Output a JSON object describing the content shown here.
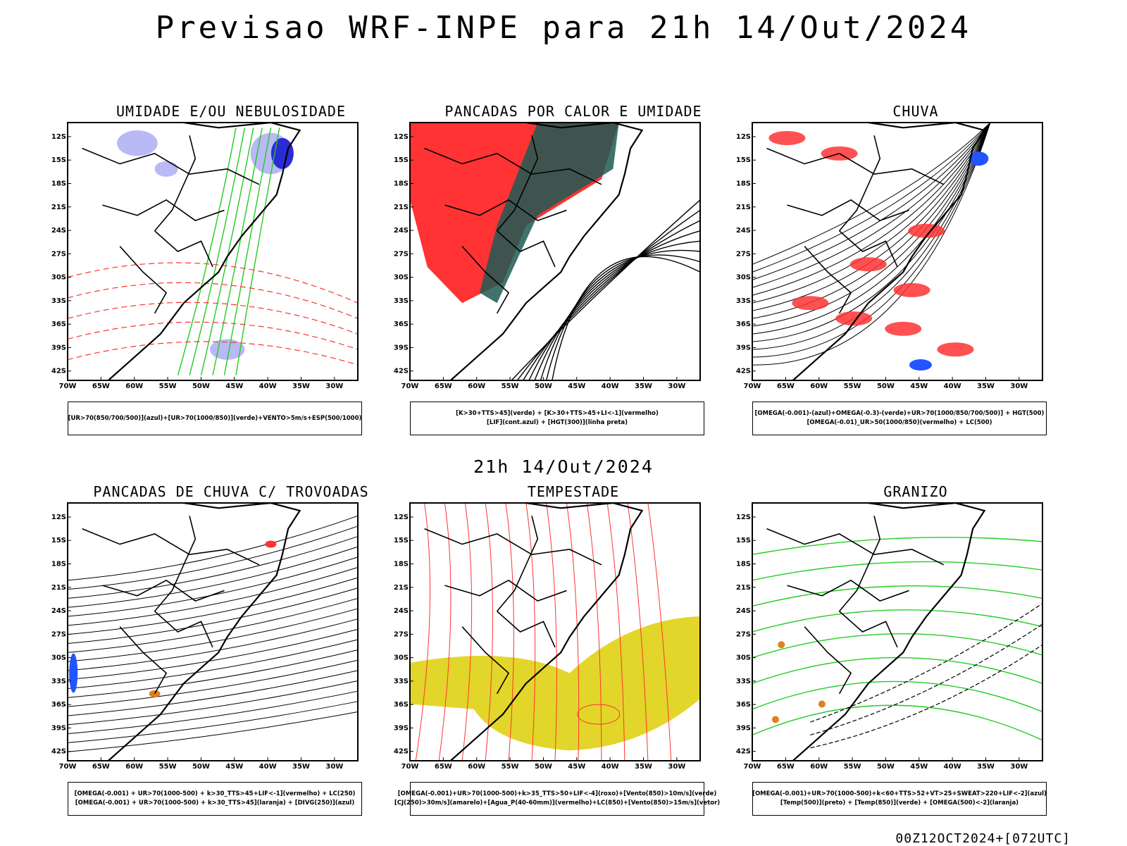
{
  "header": {
    "title": "Previsao WRF-INPE  para 21h 14/Out/2024",
    "subtitle": "21h 14/Out/2024"
  },
  "footer": {
    "run_info": "00Z12OCT2024+[072UTC]"
  },
  "axes": {
    "lat_labels": [
      "12S",
      "15S",
      "18S",
      "21S",
      "24S",
      "27S",
      "30S",
      "33S",
      "36S",
      "39S",
      "42S"
    ],
    "lon_labels": [
      "70W",
      "65W",
      "60W",
      "55W",
      "50W",
      "45W",
      "40W",
      "35W",
      "30W"
    ]
  },
  "panels": [
    {
      "title": "UMIDADE E/OU NEBULOSIDADE",
      "legend": [
        "[UR>70(850/700/500)](azul)+[UR>70(1000/850)](verde)+VENTO>5m/s+ESP(500/1000)"
      ],
      "overlay": "humidity",
      "colors": {
        "primary": "#2b2bd6",
        "secondary": "#22cc22",
        "lines": "#ff3333"
      }
    },
    {
      "title": "PANCADAS POR CALOR E UMIDADE",
      "legend": [
        "[K>30+TTS>45](verde) + [K>30+TTS>45+LI<-1](vermelho)",
        "[LIF](cont.azul) + [HGT(300)](linha preta)"
      ],
      "overlay": "heat",
      "colors": {
        "primary": "#ff3333",
        "secondary": "#1e5a55",
        "lines": "#2a4bd6"
      }
    },
    {
      "title": "CHUVA",
      "legend": [
        "[OMEGA(-0.001)-(azul)+OMEGA(-0.3)-(verde)+UR>70(1000/850/700/500)] + HGT(500)",
        "[OMEGA(-0.01)_UR>50(1000/850)(vermelho) + LC(500)"
      ],
      "overlay": "rain",
      "colors": {
        "primary": "#ff3333",
        "secondary": "#2255ff",
        "lines": "#000000"
      }
    },
    {
      "title": "PANCADAS DE CHUVA C/ TROVOADAS",
      "legend": [
        "[OMEGA(-0.001) + UR>70(1000-500) + k>30_TTS>45+LIF<-1](vermelho) + LC(250)",
        "[OMEGA(-0.001) + UR>70(1000-500) + k>30_TTS>45](laranja) + [DIVG(250)](azul)"
      ],
      "overlay": "storms",
      "colors": {
        "primary": "#2255ff",
        "secondary": "#ff3333",
        "lines": "#000000"
      }
    },
    {
      "title": "TEMPESTADE",
      "legend": [
        "[OMEGA(-0.001)+UR>70(1000-500)+k>35_TTS>50+LIF<-4](roxo)+[Vento(850)>10m/s](verde)",
        "[CJ(250)>30m/s](amarelo)+[Agua_P(40-60mm)](vermelho)+LC(850)+[Vento(850)>15m/s](vetor)"
      ],
      "overlay": "tempest",
      "colors": {
        "primary": "#e3d62a",
        "secondary": "#ff3333",
        "lines": "#000000"
      }
    },
    {
      "title": "GRANIZO",
      "legend": [
        "[OMEGA(-0.001)+UR>70(1000-500)+k<60+TTS>52+VT>25+SWEAT>220+LIF<-2](azul)",
        "[Temp(500)](preto) + [Temp(850)](verde) + [OMEGA(500)<-2](laranja)"
      ],
      "overlay": "hail",
      "colors": {
        "primary": "#22cc22",
        "secondary": "#e08020",
        "lines": "#000000"
      }
    }
  ]
}
